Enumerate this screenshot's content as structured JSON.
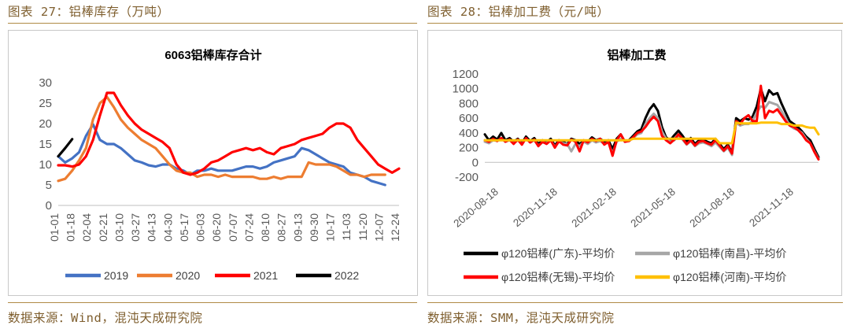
{
  "left": {
    "figure_title": "图表 27：铝棒库存（万吨）",
    "source": "数据来源：Wind，混沌天成研究院"
  },
  "right": {
    "figure_title": "图表 28：铝棒加工费（元/吨）",
    "source": "数据来源：SMM，混沌天成研究院"
  },
  "chart_data": [
    {
      "type": "line",
      "title": "6063铝棒库存合计",
      "xlabel": "",
      "ylabel": "",
      "ylim": [
        0,
        30
      ],
      "yticks": [
        0,
        5,
        10,
        15,
        20,
        25,
        30
      ],
      "x_ticks": [
        "01-01",
        "01-18",
        "02-04",
        "02-21",
        "03-10",
        "03-27",
        "04-13",
        "04-30",
        "05-17",
        "06-03",
        "06-20",
        "07-07",
        "07-24",
        "08-10",
        "08-27",
        "09-13",
        "09-30",
        "10-17",
        "11-03",
        "11-20",
        "12-07",
        "12-24"
      ],
      "grid": false,
      "legend_position": "bottom",
      "series": [
        {
          "name": "2019",
          "color": "#4472c4",
          "values": [
            12,
            10.5,
            11.5,
            13,
            17,
            19.8,
            16,
            15,
            15,
            14,
            12.5,
            11,
            10.5,
            9.8,
            9.5,
            10,
            10,
            9,
            8.5,
            7.5,
            8.5,
            8.5,
            9,
            8.5,
            8.5,
            8.5,
            9,
            9.5,
            9.5,
            9,
            9.5,
            10.5,
            11,
            11.5,
            12,
            14,
            13.5,
            12.5,
            11.5,
            10.5,
            10,
            9.5,
            8,
            7.5,
            7,
            6,
            5.5,
            5
          ]
        },
        {
          "name": "2020",
          "color": "#ed7d31",
          "values": [
            6,
            6.5,
            8.5,
            11,
            14,
            21,
            25,
            26.5,
            24,
            21,
            19,
            17.5,
            16,
            15,
            14,
            12,
            10,
            8.5,
            8,
            8,
            7,
            7.5,
            7.5,
            7,
            7.5,
            7,
            7,
            7,
            7,
            6.5,
            6.5,
            7,
            6.5,
            7,
            7,
            7,
            10.5,
            10,
            10,
            10,
            9.5,
            8.5,
            7.5,
            7.5,
            7,
            7.5,
            7.5,
            7.5
          ]
        },
        {
          "name": "2021",
          "color": "#ff0000",
          "values": [
            9.8,
            9.8,
            9.5,
            10,
            12,
            16,
            22,
            27.5,
            27.5,
            24.5,
            22,
            20,
            18.5,
            17.5,
            16.5,
            15.5,
            14,
            10,
            8,
            7.5,
            8,
            9,
            10.5,
            11,
            12,
            13,
            13.5,
            14,
            13.5,
            14,
            13,
            12.5,
            14,
            14.5,
            15,
            16,
            16.5,
            17,
            17.5,
            19,
            20,
            20,
            19,
            16,
            14,
            12,
            10,
            9,
            8,
            9
          ]
        },
        {
          "name": "2022",
          "color": "#000000",
          "values": [
            12,
            14,
            16.2
          ]
        }
      ]
    },
    {
      "type": "line",
      "title": "铝棒加工费",
      "xlabel": "",
      "ylabel": "",
      "ylim": [
        -200,
        1200
      ],
      "yticks": [
        -200,
        0,
        200,
        400,
        600,
        800,
        1000,
        1200
      ],
      "x_ticks": [
        "2020-08-18",
        "2020-11-18",
        "2021-02-18",
        "2021-05-18",
        "2021-08-18",
        "2021-11-18"
      ],
      "grid": false,
      "legend_position": "bottom",
      "series": [
        {
          "name": "φ120铝棒(广东)-平均价",
          "color": "#000000",
          "values": [
            380,
            300,
            350,
            310,
            400,
            300,
            330,
            280,
            320,
            260,
            350,
            290,
            330,
            250,
            300,
            270,
            320,
            230,
            300,
            280,
            250,
            320,
            300,
            250,
            290,
            280,
            340,
            300,
            320,
            280,
            300,
            180,
            320,
            380,
            280,
            300,
            360,
            420,
            450,
            600,
            720,
            790,
            700,
            480,
            340,
            300,
            370,
            430,
            360,
            280,
            330,
            250,
            300,
            310,
            280,
            260,
            320,
            250,
            180,
            240,
            130,
            600,
            560,
            600,
            580,
            620,
            760,
            1000,
            830,
            980,
            920,
            940,
            800,
            680,
            560,
            520,
            480,
            420,
            350,
            300,
            180,
            70
          ]
        },
        {
          "name": "φ120铝棒(南昌)-平均价",
          "color": "#a6a6a6",
          "values": [
            280,
            260,
            300,
            290,
            320,
            280,
            300,
            260,
            300,
            250,
            320,
            270,
            300,
            230,
            270,
            260,
            300,
            210,
            280,
            260,
            250,
            150,
            250,
            220,
            280,
            250,
            300,
            270,
            290,
            250,
            270,
            120,
            280,
            320,
            300,
            290,
            330,
            380,
            400,
            520,
            600,
            660,
            600,
            420,
            320,
            280,
            300,
            360,
            310,
            240,
            290,
            220,
            260,
            270,
            250,
            220,
            270,
            210,
            150,
            200,
            100,
            540,
            500,
            520,
            520,
            560,
            680,
            760,
            740,
            820,
            800,
            780,
            700,
            600,
            500,
            460,
            440,
            400,
            320,
            260,
            150,
            50
          ]
        },
        {
          "name": "φ120铝棒(无锡)-平均价",
          "color": "#ff0000",
          "values": [
            300,
            280,
            320,
            290,
            330,
            280,
            310,
            250,
            310,
            240,
            330,
            270,
            310,
            220,
            280,
            250,
            300,
            200,
            290,
            240,
            230,
            310,
            280,
            150,
            300,
            270,
            320,
            290,
            320,
            240,
            280,
            90,
            300,
            380,
            280,
            290,
            340,
            400,
            420,
            480,
            560,
            620,
            560,
            360,
            300,
            260,
            310,
            380,
            320,
            250,
            300,
            230,
            280,
            290,
            260,
            240,
            300,
            230,
            160,
            220,
            120,
            560,
            520,
            600,
            640,
            560,
            560,
            1040,
            600,
            700,
            680,
            720,
            640,
            560,
            500,
            480,
            440,
            380,
            300,
            260,
            140,
            40
          ]
        },
        {
          "name": "φ120铝棒(河南)-平均价",
          "color": "#ffc000",
          "values": [
            300,
            300,
            300,
            300,
            300,
            300,
            300,
            300,
            300,
            300,
            300,
            300,
            300,
            300,
            300,
            300,
            300,
            300,
            300,
            300,
            300,
            300,
            300,
            300,
            300,
            300,
            300,
            300,
            300,
            300,
            300,
            300,
            300,
            300,
            300,
            300,
            320,
            320,
            320,
            320,
            320,
            320,
            320,
            320,
            320,
            320,
            320,
            320,
            320,
            320,
            320,
            320,
            320,
            320,
            320,
            320,
            320,
            260,
            260,
            260,
            260,
            540,
            530,
            530,
            530,
            530,
            530,
            540,
            540,
            540,
            540,
            540,
            520,
            520,
            520,
            500,
            500,
            500,
            480,
            470,
            470,
            380
          ]
        }
      ]
    }
  ]
}
